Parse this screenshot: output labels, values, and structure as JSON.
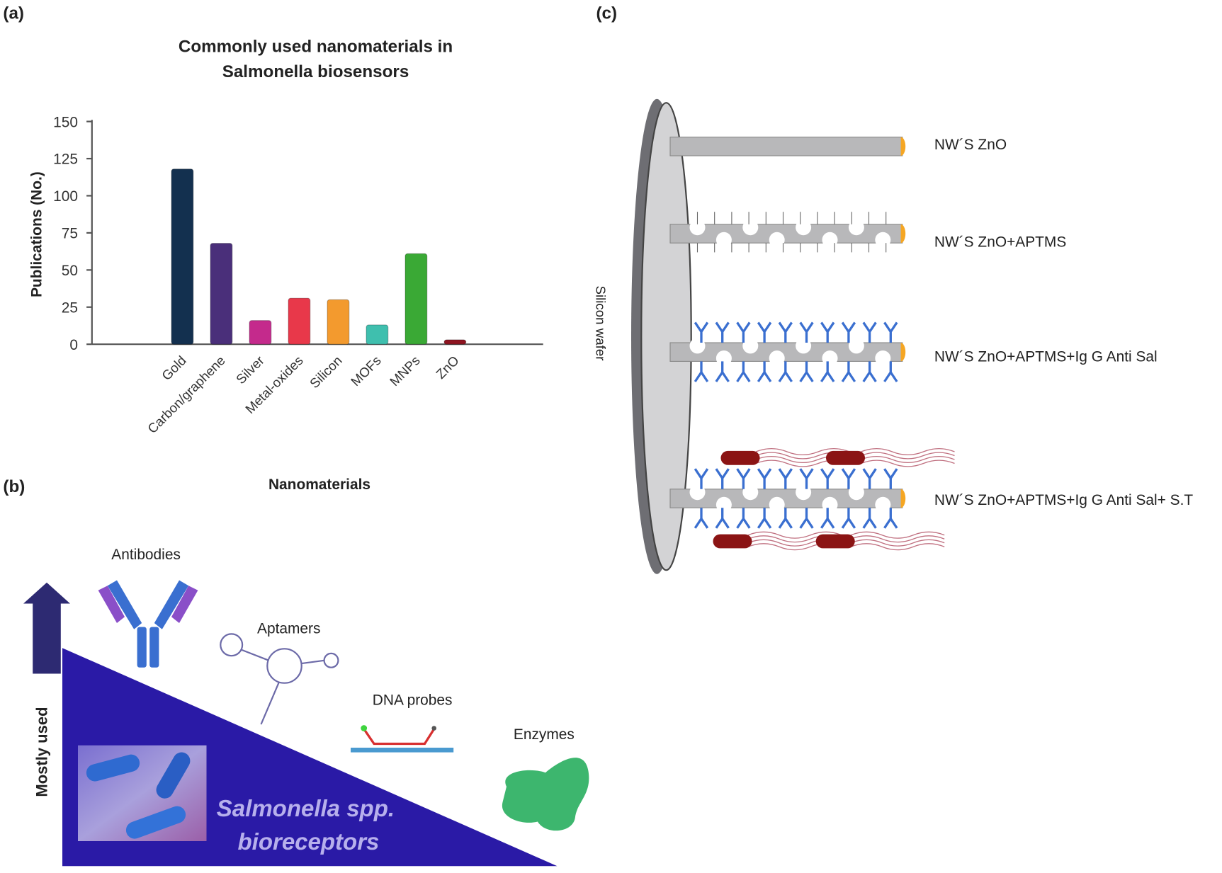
{
  "panels": {
    "a": "(a)",
    "b": "(b)",
    "c": "(c)"
  },
  "chart_data": {
    "type": "bar",
    "title": "Commonly used nanomaterials in Salmonella biosensors",
    "title_lines": [
      "Commonly used nanomaterials in",
      "Salmonella biosensors"
    ],
    "xlabel": "Nanomaterials",
    "ylabel": "Publications (No.)",
    "ylim": [
      0,
      150
    ],
    "yticks": [
      0,
      25,
      50,
      75,
      100,
      125,
      150
    ],
    "grid": false,
    "categories": [
      "Gold",
      "Carbon/graphene",
      "Silver",
      "Metal-oxides",
      "Silicon",
      "MOFs",
      "MNPs",
      "ZnO"
    ],
    "values": [
      118,
      68,
      16,
      31,
      30,
      13,
      61,
      3
    ],
    "colors": [
      "#13304f",
      "#4a2f7a",
      "#c42a8c",
      "#e8384a",
      "#f39a2e",
      "#3fbfae",
      "#3aa935",
      "#8e1420"
    ]
  },
  "panel_b": {
    "axis_label": "Mostly used",
    "title_line1": "Salmonella spp.",
    "title_line2": "bioreceptors",
    "bioreceptors": [
      "Antibodies",
      "Aptamers",
      "DNA probes",
      "Enzymes"
    ],
    "triangle_color": "#2a1aa6"
  },
  "panel_c": {
    "wafer_label": "Silicon wafer",
    "steps": [
      "NW´S ZnO",
      "NW´S ZnO+APTMS",
      "NW´S ZnO+APTMS+Ig G Anti Sal",
      "NW´S ZnO+APTMS+Ig G Anti Sal+ S.T"
    ]
  }
}
